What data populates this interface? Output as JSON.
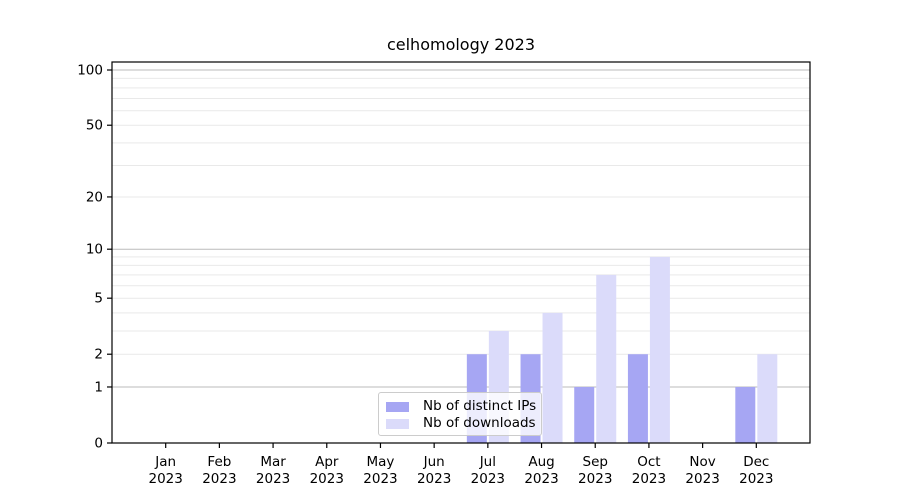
{
  "chart_data": {
    "type": "bar",
    "title": "celhomology 2023",
    "categories": [
      "Jan",
      "Feb",
      "Mar",
      "Apr",
      "May",
      "Jun",
      "Jul",
      "Aug",
      "Sep",
      "Oct",
      "Nov",
      "Dec"
    ],
    "category_sublabel": "2023",
    "series": [
      {
        "name": "Nb of distinct IPs",
        "color": "#a6a6f3",
        "values": [
          0,
          0,
          0,
          0,
          0,
          0,
          2,
          2,
          1,
          2,
          0,
          1
        ]
      },
      {
        "name": "Nb of downloads",
        "color": "#dbdbfa",
        "values": [
          0,
          0,
          0,
          0,
          0,
          0,
          3,
          4,
          7,
          9,
          0,
          2
        ]
      }
    ],
    "y_axis": {
      "scale": "log10(1+v)",
      "tick_labels": [
        0,
        1,
        2,
        5,
        10,
        20,
        50,
        100
      ],
      "major_gridlines": [
        1,
        10,
        100
      ],
      "minor_gridlines": [
        2,
        3,
        4,
        5,
        6,
        7,
        8,
        9,
        20,
        30,
        40,
        50,
        60,
        70,
        80,
        90
      ],
      "min": 0,
      "max": 100
    },
    "legend_position": "lower center",
    "grid": true,
    "colors": {
      "major_grid": "#bbbbbb",
      "minor_grid": "#e9e9e9",
      "axis": "#000000",
      "text": "#000000",
      "background": "#ffffff"
    }
  }
}
